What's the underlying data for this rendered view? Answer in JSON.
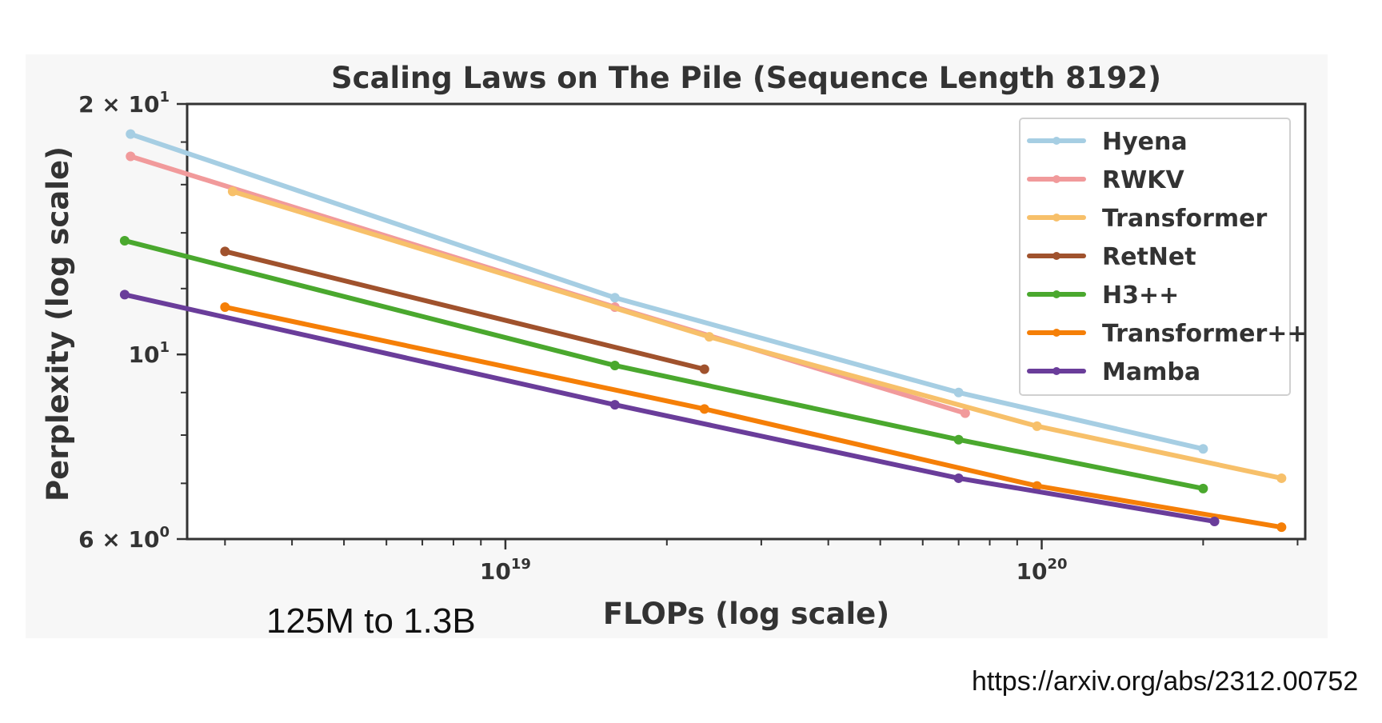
{
  "chart_data": {
    "type": "line",
    "title": "Scaling Laws on The Pile (Sequence Length 8192)",
    "xlabel": "FLOPs (log scale)",
    "ylabel": "Perplexity (log scale)",
    "x_scale": "log",
    "y_scale": "log",
    "xlim": [
      2.55e+18,
      3.1e+20
    ],
    "ylim": [
      6,
      20
    ],
    "x_ticks": [
      {
        "value": 1e+19,
        "label_base": "10",
        "label_exp": "19"
      },
      {
        "value": 1e+20,
        "label_base": "10",
        "label_exp": "20"
      }
    ],
    "y_ticks": [
      {
        "value": 6,
        "label_base": "6 × 10",
        "label_exp": "0"
      },
      {
        "value": 10,
        "label_base": "10",
        "label_exp": "1"
      },
      {
        "value": 20,
        "label_base": "2 × 10",
        "label_exp": "1"
      }
    ],
    "grid": false,
    "legend_position": "top-right",
    "series": [
      {
        "name": "Hyena",
        "color": "#a6cee3",
        "x": [
          2e+18,
          1.6e+19,
          7e+19,
          2e+20
        ],
        "y": [
          18.4,
          11.7,
          9.0,
          7.7
        ]
      },
      {
        "name": "RWKV",
        "color": "#f19a9b",
        "x": [
          2e+18,
          1.6e+19,
          7.2e+19
        ],
        "y": [
          17.3,
          11.4,
          8.5
        ]
      },
      {
        "name": "Transformer",
        "color": "#f7c06a",
        "x": [
          3.1e+18,
          2.4e+19,
          9.8e+19,
          2.8e+20
        ],
        "y": [
          15.7,
          10.5,
          8.2,
          7.1
        ]
      },
      {
        "name": "RetNet",
        "color": "#a0522d",
        "x": [
          3e+18,
          2.35e+19
        ],
        "y": [
          13.3,
          9.6
        ]
      },
      {
        "name": "H3++",
        "color": "#4aa82e",
        "x": [
          1.95e+18,
          1.6e+19,
          7e+19,
          2e+20
        ],
        "y": [
          13.7,
          9.7,
          7.9,
          6.9
        ]
      },
      {
        "name": "Transformer++",
        "color": "#f57f07",
        "x": [
          3e+18,
          2.35e+19,
          9.8e+19,
          2.8e+20
        ],
        "y": [
          11.4,
          8.6,
          6.95,
          6.2
        ]
      },
      {
        "name": "Mamba",
        "color": "#6a3d9a",
        "x": [
          1.95e+18,
          1.6e+19,
          7e+19,
          2.1e+20
        ],
        "y": [
          11.8,
          8.7,
          7.1,
          6.3
        ]
      }
    ]
  },
  "caption": "125M to 1.3B",
  "source_url": "https://arxiv.org/abs/2312.00752"
}
